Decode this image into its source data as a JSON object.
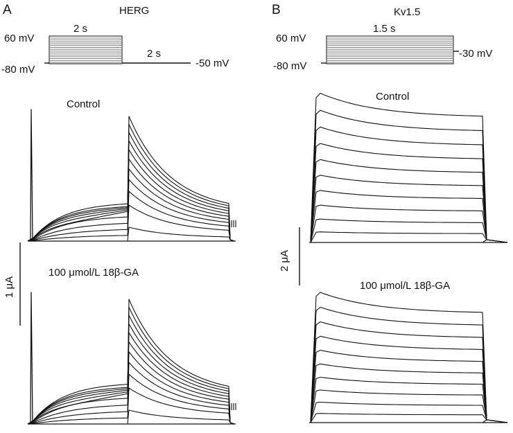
{
  "panel_a": {
    "letter": "A",
    "title": "HERG",
    "protocol": {
      "v_step_top": "60 mV",
      "v_hold": "-80 mV",
      "v_tail": "-50 mV",
      "step_duration": "2 s",
      "tail_duration": "2 s"
    },
    "conditions": [
      "Control",
      "100 μmol/L 18β-GA"
    ],
    "scale_bar": "1 μA"
  },
  "panel_b": {
    "letter": "B",
    "title": "Kv1.5",
    "protocol": {
      "v_step_top": "60 mV",
      "v_hold": "-80 mV",
      "v_tail": "-30 mV",
      "step_duration": "1.5 s"
    },
    "conditions": [
      "Control",
      "100 μmol/L 18β-GA"
    ],
    "scale_bar": "2 μA"
  }
}
